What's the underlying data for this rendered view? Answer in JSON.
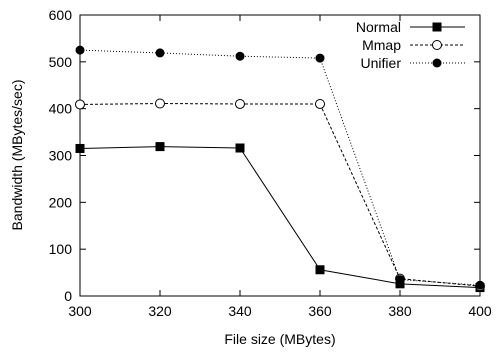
{
  "chart_data": {
    "type": "line",
    "title": "",
    "xlabel": "File size (MBytes)",
    "ylabel": "Bandwidth (MBytes/sec)",
    "xlim": [
      300,
      400
    ],
    "ylim": [
      0,
      600
    ],
    "xticks": [
      300,
      320,
      340,
      360,
      380,
      400
    ],
    "yticks": [
      0,
      100,
      200,
      300,
      400,
      500,
      600
    ],
    "grid": false,
    "legend_position": "top-right",
    "x": [
      300,
      320,
      340,
      360,
      380,
      400
    ],
    "series": [
      {
        "name": "Normal",
        "values": [
          315,
          319,
          316,
          56,
          26,
          18
        ],
        "marker": "filled-square",
        "line_style": "solid",
        "color": "#000000"
      },
      {
        "name": "Mmap",
        "values": [
          409,
          411,
          410,
          410,
          37,
          21
        ],
        "marker": "open-circle",
        "line_style": "dashed",
        "color": "#000000"
      },
      {
        "name": "Unifier",
        "values": [
          525,
          519,
          512,
          508,
          35,
          23
        ],
        "marker": "filled-circle",
        "line_style": "dotted",
        "color": "#000000"
      }
    ]
  }
}
